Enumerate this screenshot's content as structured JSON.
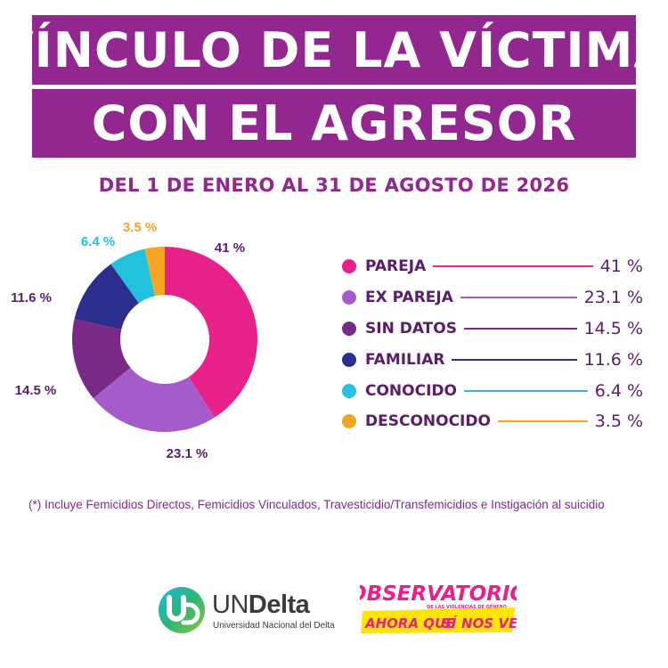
{
  "header": {
    "title_line1": "VÍNCULO DE LA VÍCTIMA",
    "title_line2": "CON EL AGRESOR",
    "subtitle": "DEL 1 DE ENERO AL 31 DE AGOSTO DE 2026"
  },
  "chart_data": {
    "type": "pie",
    "donut": true,
    "title": "VÍNCULO DE LA VÍCTIMA CON EL AGRESOR",
    "subtitle": "DEL 1 DE ENERO AL 31 DE AGOSTO DE 2026",
    "legend_position": "right",
    "slices": [
      {
        "label": "PAREJA",
        "value": 41,
        "display": "41 %",
        "color": "#e8208a"
      },
      {
        "label": "EX PAREJA",
        "value": 23.1,
        "display": "23.1 %",
        "color": "#a35cc9"
      },
      {
        "label": "SIN DATOS",
        "value": 14.5,
        "display": "14.5 %",
        "color": "#782a86"
      },
      {
        "label": "FAMILIAR",
        "value": 11.6,
        "display": "11.6 %",
        "color": "#2b2e8c"
      },
      {
        "label": "CONOCIDO",
        "value": 6.4,
        "display": "6.4 %",
        "color": "#22c1dd"
      },
      {
        "label": "DESCONOCIDO",
        "value": 3.5,
        "display": "3.5 %",
        "color": "#f5a524"
      }
    ]
  },
  "footnote": "(*) Incluye Femicidios Directos, Femicidios Vinculados,  Travesticidio/Transfemicidios e Instigación al suicidio",
  "logos": {
    "undelta_name_prefix": "UN",
    "undelta_name_bold": "Delta",
    "undelta_subtitle": "Universidad Nacional del Delta",
    "observatorio_title": "OBSERVATORIO",
    "observatorio_subtitle": "DE LAS VIOLENCIAS DE GÉNERO",
    "observatorio_tagline_left": "AHORA QUE",
    "observatorio_tagline_mark": "SÍ",
    "observatorio_tagline_right": "NOS VEN"
  },
  "colors": {
    "brand_purple": "#92278f",
    "label_text": "#5a1d6a",
    "observatorio_pink": "#e8208a",
    "observatorio_yellow": "#ffe600"
  }
}
